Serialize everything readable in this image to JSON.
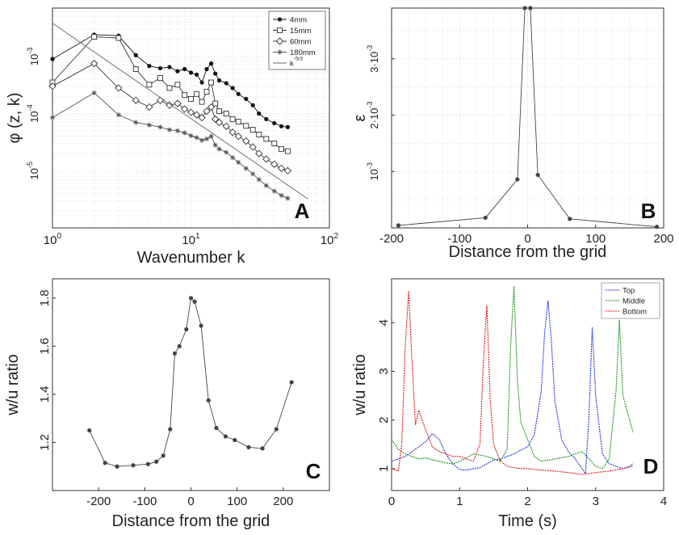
{
  "figure": {
    "panels": [
      {
        "id": "A",
        "title": ""
      },
      {
        "id": "B",
        "title": ""
      },
      {
        "id": "C",
        "title": ""
      },
      {
        "id": "D",
        "title": ""
      }
    ]
  },
  "chart_data": [
    {
      "panel": "A",
      "type": "line",
      "xlabel": "Wavenumber k",
      "ylabel": "φ (z, k)",
      "xscale": "log",
      "yscale": "log",
      "xlim": [
        1,
        100
      ],
      "ylim": [
        1e-06,
        0.007
      ],
      "xticks": [
        1,
        10,
        100
      ],
      "xticklabels": [
        "10^0",
        "10^1",
        "10^2"
      ],
      "yticks": [
        1e-05,
        0.0001,
        0.001
      ],
      "yticklabels": [
        "10^-5",
        "10^-4",
        "10^-3"
      ],
      "grid": true,
      "legend_position": "top-right",
      "legend": [
        "4mm",
        "15mm",
        "60mm",
        "180mm",
        "k^-5/3"
      ],
      "series": [
        {
          "name": "4mm",
          "marker": "filled-circle",
          "color": "#111111",
          "x": [
            1,
            2,
            3,
            4,
            5,
            6,
            7,
            8,
            9,
            10,
            11,
            12,
            13,
            14,
            15,
            16,
            18,
            20,
            22,
            25,
            28,
            31,
            35,
            40,
            45,
            50
          ],
          "y": [
            0.0009,
            0.0024,
            0.0023,
            0.00105,
            0.00068,
            0.00062,
            0.00065,
            0.00055,
            0.0006,
            0.00052,
            0.00048,
            0.00035,
            0.0006,
            0.00075,
            0.0005,
            0.00038,
            0.00034,
            0.00028,
            0.00022,
            0.00018,
            0.00014,
            0.0001,
            8e-05,
            6.8e-05,
            6e-05,
            5.8e-05
          ]
        },
        {
          "name": "15mm",
          "marker": "open-square",
          "color": "#333333",
          "x": [
            1,
            2,
            3,
            4,
            5,
            6,
            7,
            8,
            9,
            10,
            11,
            12,
            13,
            14,
            15,
            16,
            18,
            20,
            22,
            25,
            28,
            31,
            35,
            40,
            45,
            50
          ],
          "y": [
            0.00035,
            0.0022,
            0.0021,
            0.0006,
            0.00032,
            0.00042,
            0.00028,
            0.00032,
            0.00021,
            0.00018,
            0.00022,
            0.00016,
            0.00024,
            0.00035,
            0.00015,
            0.00011,
            0.0001,
            8e-05,
            7.2e-05,
            6.1e-05,
            5.2e-05,
            4.3e-05,
            3.6e-05,
            3e-05,
            2.4e-05,
            2.2e-05
          ]
        },
        {
          "name": "60mm",
          "marker": "open-diamond",
          "color": "#333333",
          "x": [
            1,
            2,
            3,
            4,
            5,
            6,
            7,
            8,
            9,
            10,
            11,
            12,
            13,
            14,
            15,
            16,
            18,
            20,
            22,
            25,
            28,
            31,
            35,
            40,
            45,
            50
          ],
          "y": [
            0.0003,
            0.00075,
            0.00028,
            0.00017,
            0.00013,
            0.00017,
            0.00014,
            0.00015,
            0.00012,
            0.000105,
            9.5e-05,
            8.5e-05,
            0.00011,
            0.00013,
            8e-05,
            7e-05,
            6e-05,
            4.7e-05,
            4e-05,
            3.3e-05,
            2.6e-05,
            2e-05,
            1.6e-05,
            1.3e-05,
            1.1e-05,
            1e-05
          ]
        },
        {
          "name": "180mm",
          "marker": "star",
          "color": "#555555",
          "x": [
            1,
            2,
            3,
            4,
            5,
            6,
            7,
            8,
            9,
            10,
            11,
            12,
            13,
            14,
            15,
            16,
            18,
            20,
            22,
            25,
            28,
            31,
            35,
            40,
            45,
            50
          ],
          "y": [
            8.5e-05,
            0.00023,
            9.5e-05,
            7e-05,
            6.3e-05,
            5.8e-05,
            5.2e-05,
            5e-05,
            4.6e-05,
            4.1e-05,
            3.8e-05,
            3.4e-05,
            3.6e-05,
            4e-05,
            2.8e-05,
            2.4e-05,
            2.1e-05,
            1.7e-05,
            1.4e-05,
            1.1e-05,
            8.8e-06,
            7e-06,
            5.5e-06,
            4.4e-06,
            3.7e-06,
            3.3e-06
          ]
        },
        {
          "name": "k^-5/3",
          "marker": "none",
          "color": "#666666",
          "x": [
            1,
            70
          ],
          "y": [
            0.0038,
            3.2e-06
          ]
        }
      ]
    },
    {
      "panel": "B",
      "type": "line",
      "xlabel": "Distance from the grid",
      "ylabel": "ε",
      "xlim": [
        -200,
        200
      ],
      "ylim": [
        0,
        0.0039
      ],
      "xticks": [
        -200,
        -100,
        0,
        100,
        200
      ],
      "yticks": [
        0.001,
        0.002,
        0.003
      ],
      "yticklabels": [
        "10^-3",
        "2·10^-3",
        "3·10^-3"
      ],
      "grid": true,
      "series": [
        {
          "name": "",
          "marker": "filled-circle",
          "color": "#444444",
          "x": [
            -190,
            -62,
            -15,
            -4,
            4,
            15,
            62,
            190
          ],
          "y": [
            4.5e-05,
            0.00018,
            0.00086,
            0.0039,
            0.0039,
            0.00094,
            0.00016,
            2e-05
          ]
        }
      ]
    },
    {
      "panel": "C",
      "type": "line",
      "xlabel": "Distance from the grid",
      "ylabel": "w/u ratio",
      "xlim": [
        -300,
        300
      ],
      "ylim": [
        1.0,
        1.88
      ],
      "xticks": [
        -200,
        -100,
        0,
        100,
        200
      ],
      "yticks": [
        1.2,
        1.4,
        1.6,
        1.8
      ],
      "grid": false,
      "series": [
        {
          "name": "",
          "marker": "filled-circle",
          "color": "#444444",
          "x": [
            -220,
            -186,
            -160,
            -125,
            -93,
            -75,
            -60,
            -45,
            -35,
            -25,
            -10,
            0,
            8,
            22,
            38,
            55,
            75,
            95,
            125,
            155,
            185,
            218
          ],
          "y": [
            1.25,
            1.115,
            1.1,
            1.105,
            1.11,
            1.12,
            1.145,
            1.255,
            1.57,
            1.6,
            1.67,
            1.8,
            1.785,
            1.685,
            1.375,
            1.26,
            1.225,
            1.21,
            1.18,
            1.175,
            1.255,
            1.45
          ]
        }
      ]
    },
    {
      "panel": "D",
      "type": "line",
      "xlabel": "Time (s)",
      "ylabel": "w/u ratio",
      "xlim": [
        0,
        4
      ],
      "ylim": [
        0.55,
        4.9
      ],
      "xticks": [
        0,
        1,
        2,
        3,
        4
      ],
      "yticks": [
        1,
        2,
        3,
        4
      ],
      "grid": false,
      "legend_position": "top-right",
      "legend": [
        "Top",
        "Middle",
        "Bottom"
      ],
      "series": [
        {
          "name": "Top",
          "color": "#1f2ee6",
          "x": [
            0,
            0.1,
            0.2,
            0.3,
            0.4,
            0.5,
            0.6,
            0.7,
            0.8,
            0.9,
            1.0,
            1.1,
            1.2,
            1.3,
            1.4,
            1.5,
            1.6,
            1.7,
            1.8,
            1.9,
            2.0,
            2.1,
            2.2,
            2.25,
            2.3,
            2.35,
            2.4,
            2.5,
            2.6,
            2.7,
            2.8,
            2.85,
            2.9,
            2.95,
            3.0,
            3.1,
            3.2,
            3.3,
            3.4,
            3.5,
            3.55
          ],
          "y": [
            1.15,
            1.2,
            1.25,
            1.35,
            1.45,
            1.55,
            1.72,
            1.6,
            1.3,
            1.1,
            0.98,
            0.97,
            1.0,
            1.02,
            1.1,
            1.18,
            1.2,
            1.25,
            1.3,
            1.38,
            1.45,
            1.7,
            2.6,
            3.8,
            4.45,
            3.6,
            2.4,
            1.6,
            1.35,
            1.2,
            1.0,
            0.9,
            2.0,
            3.9,
            2.5,
            1.3,
            1.1,
            1.05,
            1.0,
            1.05,
            1.1
          ]
        },
        {
          "name": "Middle",
          "color": "#1a8f1a",
          "x": [
            0,
            0.1,
            0.2,
            0.3,
            0.4,
            0.5,
            0.6,
            0.7,
            0.8,
            0.9,
            1.0,
            1.1,
            1.2,
            1.3,
            1.4,
            1.5,
            1.6,
            1.7,
            1.75,
            1.8,
            1.85,
            1.9,
            2.0,
            2.1,
            2.2,
            2.4,
            2.6,
            2.8,
            2.9,
            3.0,
            3.1,
            3.2,
            3.3,
            3.35,
            3.4,
            3.5,
            3.55
          ],
          "y": [
            1.6,
            1.4,
            1.3,
            1.25,
            1.2,
            1.22,
            1.18,
            1.15,
            1.12,
            1.1,
            1.15,
            1.22,
            1.3,
            1.28,
            1.25,
            1.2,
            1.15,
            1.4,
            3.5,
            4.75,
            2.8,
            1.95,
            1.6,
            1.25,
            1.15,
            1.2,
            1.25,
            1.35,
            1.2,
            1.05,
            1.0,
            1.2,
            2.6,
            4.05,
            2.5,
            2.0,
            1.75
          ]
        },
        {
          "name": "Bottom",
          "color": "#e01818",
          "x": [
            0,
            0.1,
            0.15,
            0.2,
            0.25,
            0.3,
            0.35,
            0.4,
            0.5,
            0.6,
            0.7,
            0.8,
            0.9,
            1.0,
            1.1,
            1.2,
            1.3,
            1.35,
            1.4,
            1.45,
            1.5,
            1.6,
            1.7,
            1.8,
            1.9,
            2.0,
            2.2,
            2.4,
            2.6,
            2.8,
            3.0,
            3.2,
            3.4,
            3.55
          ],
          "y": [
            1.0,
            0.95,
            1.5,
            3.5,
            4.65,
            3.2,
            1.9,
            2.2,
            1.8,
            1.45,
            1.35,
            1.3,
            1.25,
            1.25,
            1.2,
            1.15,
            1.5,
            3.2,
            4.35,
            2.4,
            1.5,
            1.15,
            1.05,
            1.02,
            1.0,
            1.0,
            0.97,
            0.95,
            0.92,
            0.88,
            0.92,
            0.95,
            1.0,
            1.05
          ]
        }
      ]
    }
  ]
}
